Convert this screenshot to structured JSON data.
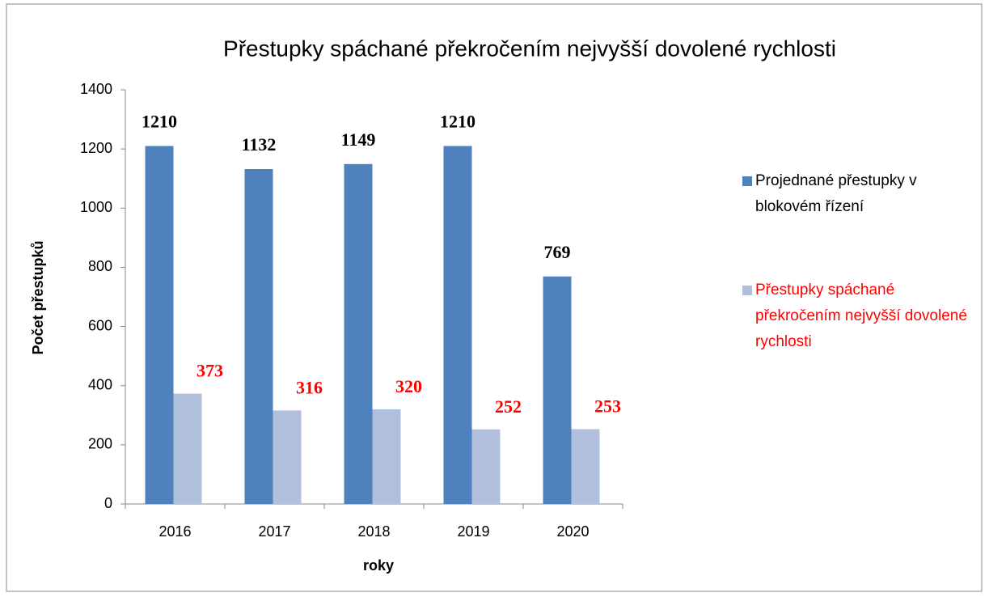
{
  "chart_data": {
    "type": "bar",
    "title": "Přestupky spáchané překročením nejvyšší dovolené rychlosti",
    "x_label": "roky",
    "y_label": "Počet přestupků",
    "categories": [
      "2016",
      "2017",
      "2018",
      "2019",
      "2020"
    ],
    "series": [
      {
        "name": "Projednané přestupky v blokovém řízení",
        "color": "#4f81bd",
        "values": [
          1210,
          1132,
          1149,
          1210,
          769
        ]
      },
      {
        "name": "Přestupky spáchané překročením nejvyšší dovolené rychlosti",
        "color": "#b0bfdc",
        "values": [
          373,
          316,
          320,
          252,
          253
        ]
      }
    ],
    "ylim": [
      0,
      1400
    ],
    "yticks": [
      0,
      200,
      400,
      600,
      800,
      1000,
      1200,
      1400
    ],
    "legend": "right"
  }
}
